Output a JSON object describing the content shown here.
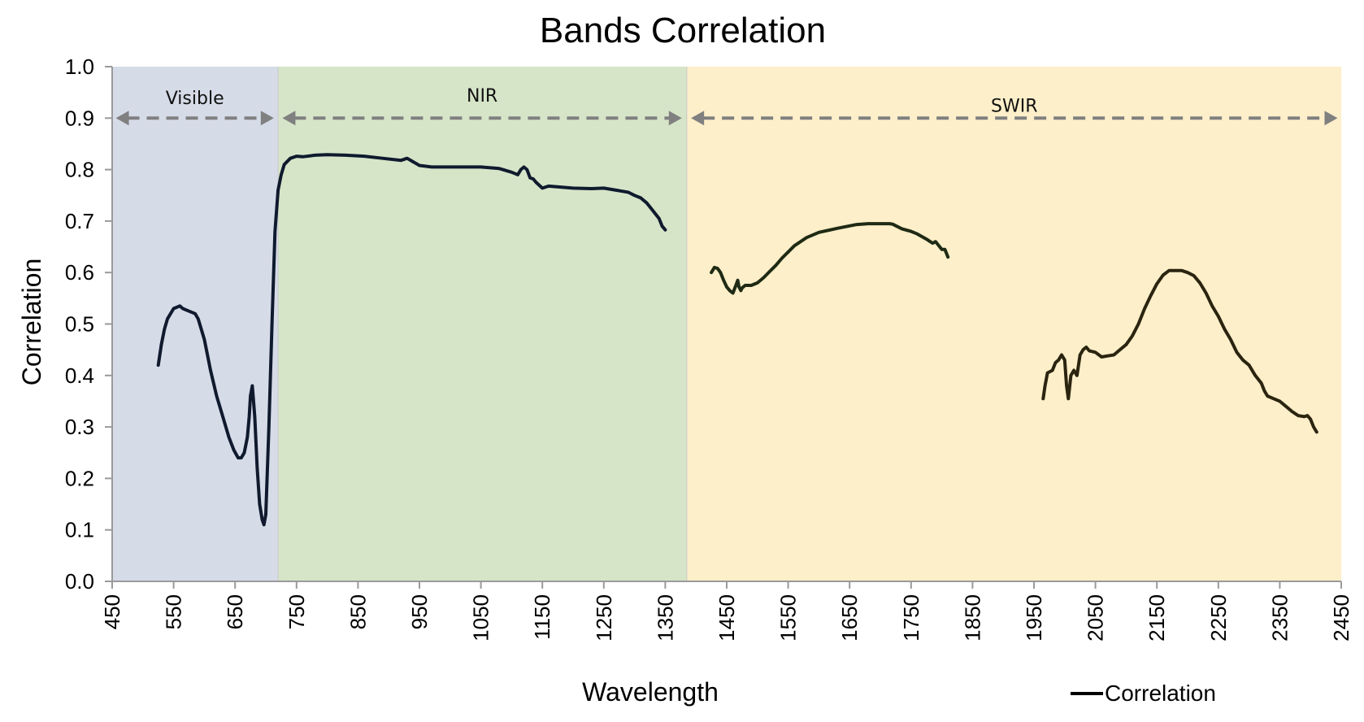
{
  "chart_data": {
    "type": "line",
    "title": "Bands Correlation",
    "xlabel": "Wavelength",
    "ylabel": "Correlation",
    "xlim": [
      450,
      2450
    ],
    "ylim": [
      0.0,
      1.0
    ],
    "x_ticks": [
      450,
      550,
      650,
      750,
      850,
      950,
      1050,
      1150,
      1250,
      1350,
      1450,
      1550,
      1650,
      1750,
      1850,
      1950,
      2050,
      2150,
      2250,
      2350,
      2450
    ],
    "x_tick_labels": [
      "450",
      "550",
      "650",
      "750",
      "850",
      "950",
      "1050",
      "1150",
      "1250",
      "1350",
      "1450",
      "1550",
      "1650",
      "1750",
      "1850",
      "1950",
      "2050",
      "2150",
      "2250",
      "2350",
      "2450"
    ],
    "y_ticks": [
      0.0,
      0.1,
      0.2,
      0.3,
      0.4,
      0.5,
      0.6,
      0.7,
      0.8,
      0.9,
      1.0
    ],
    "y_tick_labels": [
      "0.0",
      "0.1",
      "0.2",
      "0.3",
      "0.4",
      "0.5",
      "0.6",
      "0.7",
      "0.8",
      "0.9",
      "1.0"
    ],
    "regions": [
      {
        "name": "Visible",
        "x_start": 450,
        "x_end": 720,
        "color": "#d6dbe8"
      },
      {
        "name": "NIR",
        "x_start": 720,
        "x_end": 1385,
        "color": "#d6e5c8"
      },
      {
        "name": "SWIR",
        "x_start": 1385,
        "x_end": 2450,
        "color": "#fdefc9"
      }
    ],
    "band_arrows": [
      {
        "label": "Visible",
        "x_start": 456,
        "x_end": 713,
        "y": 0.9,
        "label_y": 0.94
      },
      {
        "label": "NIR",
        "x_start": 727,
        "x_end": 1377,
        "y": 0.9,
        "label_y": 0.945
      },
      {
        "label": "SWIR",
        "x_start": 1392,
        "x_end": 2444,
        "y": 0.9,
        "label_y": 0.925
      }
    ],
    "arrow_color": "#808080",
    "line_colors": [
      "#0f1a2e",
      "#1f2a14",
      "#2a2410"
    ],
    "series": [
      {
        "name": "Correlation",
        "segments": [
          {
            "x": [
              525,
              530,
              535,
              540,
              550,
              560,
              565,
              575,
              585,
              590,
              600,
              610,
              620,
              630,
              640,
              648,
              655,
              660,
              665,
              670,
              673,
              675,
              678,
              682,
              686,
              690,
              694,
              697,
              700,
              705,
              710,
              715,
              720,
              725,
              730,
              740,
              750,
              760,
              780,
              800,
              830,
              860,
              890,
              920,
              930,
              940,
              950,
              970,
              1000,
              1050,
              1080,
              1100,
              1110,
              1115,
              1120,
              1125,
              1130,
              1135,
              1140,
              1150,
              1160,
              1180,
              1200,
              1230,
              1250,
              1270,
              1280,
              1290,
              1300,
              1310,
              1320,
              1330,
              1340,
              1345,
              1350
            ],
            "y": [
              0.42,
              0.46,
              0.49,
              0.51,
              0.53,
              0.535,
              0.53,
              0.525,
              0.52,
              0.51,
              0.47,
              0.41,
              0.36,
              0.32,
              0.28,
              0.255,
              0.24,
              0.24,
              0.25,
              0.28,
              0.32,
              0.36,
              0.38,
              0.32,
              0.22,
              0.15,
              0.12,
              0.11,
              0.13,
              0.3,
              0.5,
              0.68,
              0.76,
              0.79,
              0.81,
              0.822,
              0.826,
              0.825,
              0.828,
              0.829,
              0.828,
              0.826,
              0.822,
              0.818,
              0.822,
              0.815,
              0.808,
              0.805,
              0.805,
              0.805,
              0.802,
              0.795,
              0.79,
              0.8,
              0.805,
              0.8,
              0.784,
              0.782,
              0.775,
              0.764,
              0.768,
              0.766,
              0.764,
              0.763,
              0.764,
              0.76,
              0.758,
              0.756,
              0.75,
              0.745,
              0.735,
              0.72,
              0.705,
              0.69,
              0.683
            ]
          },
          {
            "x": [
              1425,
              1430,
              1435,
              1440,
              1445,
              1450,
              1455,
              1460,
              1465,
              1468,
              1470,
              1473,
              1475,
              1480,
              1490,
              1500,
              1510,
              1520,
              1530,
              1540,
              1550,
              1560,
              1580,
              1600,
              1630,
              1660,
              1680,
              1700,
              1715,
              1720,
              1735,
              1750,
              1760,
              1775,
              1785,
              1790,
              1800,
              1805,
              1810
            ],
            "y": [
              0.6,
              0.61,
              0.608,
              0.6,
              0.585,
              0.572,
              0.565,
              0.56,
              0.575,
              0.585,
              0.572,
              0.565,
              0.57,
              0.575,
              0.575,
              0.58,
              0.59,
              0.602,
              0.614,
              0.628,
              0.64,
              0.652,
              0.668,
              0.678,
              0.686,
              0.693,
              0.695,
              0.695,
              0.695,
              0.694,
              0.685,
              0.68,
              0.675,
              0.665,
              0.657,
              0.66,
              0.645,
              0.645,
              0.63
            ]
          },
          {
            "x": [
              1965,
              1968,
              1972,
              1980,
              1985,
              1990,
              1995,
              2000,
              2003,
              2006,
              2010,
              2015,
              2020,
              2025,
              2030,
              2035,
              2040,
              2050,
              2060,
              2070,
              2080,
              2090,
              2100,
              2110,
              2120,
              2130,
              2140,
              2150,
              2160,
              2170,
              2180,
              2190,
              2200,
              2210,
              2220,
              2230,
              2240,
              2250,
              2260,
              2270,
              2280,
              2290,
              2300,
              2310,
              2320,
              2325,
              2330,
              2340,
              2350,
              2360,
              2370,
              2380,
              2390,
              2395,
              2400,
              2405,
              2410
            ],
            "y": [
              0.355,
              0.38,
              0.405,
              0.41,
              0.425,
              0.43,
              0.44,
              0.43,
              0.38,
              0.355,
              0.4,
              0.41,
              0.4,
              0.44,
              0.45,
              0.455,
              0.448,
              0.445,
              0.436,
              0.438,
              0.44,
              0.45,
              0.46,
              0.477,
              0.5,
              0.53,
              0.555,
              0.578,
              0.595,
              0.604,
              0.604,
              0.604,
              0.6,
              0.594,
              0.58,
              0.56,
              0.535,
              0.515,
              0.49,
              0.47,
              0.445,
              0.43,
              0.42,
              0.4,
              0.385,
              0.37,
              0.36,
              0.355,
              0.35,
              0.34,
              0.33,
              0.322,
              0.32,
              0.322,
              0.315,
              0.3,
              0.29
            ]
          }
        ]
      }
    ],
    "legend": {
      "label": "Correlation",
      "position": "bottom-right"
    }
  }
}
